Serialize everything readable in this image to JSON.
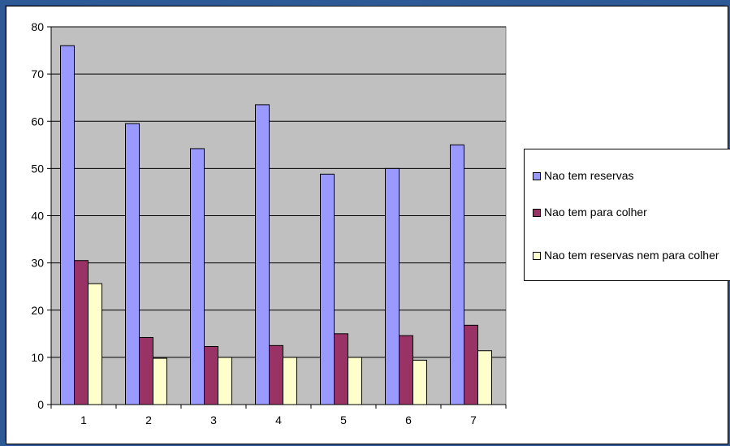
{
  "chart_data": {
    "type": "bar",
    "title": "",
    "xlabel": "",
    "ylabel": "",
    "categories": [
      "1",
      "2",
      "3",
      "4",
      "5",
      "6",
      "7"
    ],
    "ylim": [
      0,
      80
    ],
    "yticks": [
      0,
      10,
      20,
      30,
      40,
      50,
      60,
      70,
      80
    ],
    "grid": true,
    "legend_position": "right",
    "plot_background": "#c0c0c0",
    "series": [
      {
        "name": "Nao tem reservas",
        "color": "#9999ff",
        "values": [
          76.0,
          59.5,
          54.2,
          63.5,
          48.8,
          50.0,
          55.0
        ]
      },
      {
        "name": "Nao tem para colher",
        "color": "#993366",
        "values": [
          30.5,
          14.2,
          12.3,
          12.5,
          15.0,
          14.6,
          16.8
        ]
      },
      {
        "name": "Nao tem reservas nem para colher",
        "color": "#ffffcc",
        "values": [
          25.6,
          9.8,
          10.0,
          10.0,
          10.0,
          9.4,
          11.4
        ]
      }
    ]
  }
}
